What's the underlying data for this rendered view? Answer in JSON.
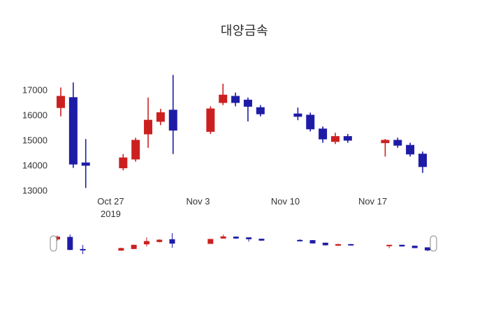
{
  "chart_data": {
    "type": "candlestick",
    "title": "대양금속",
    "increasing_color": "#cc2020",
    "decreasing_color": "#1e1ca6",
    "ylim": [
      12900,
      17800
    ],
    "yticks": [
      13000,
      14000,
      15000,
      16000,
      17000
    ],
    "xticks": [
      {
        "label": "Oct 27",
        "year": "2019",
        "date": "2019-10-27"
      },
      {
        "label": "Nov 3",
        "date": "2019-11-03"
      },
      {
        "label": "Nov 10",
        "date": "2019-11-10"
      },
      {
        "label": "Nov 17",
        "date": "2019-11-17"
      }
    ],
    "candles": [
      {
        "date": "2019-10-23",
        "open": 16300,
        "high": 17100,
        "low": 15950,
        "close": 16750
      },
      {
        "date": "2019-10-24",
        "open": 16700,
        "high": 17300,
        "low": 13900,
        "close": 14050
      },
      {
        "date": "2019-10-25",
        "open": 14100,
        "high": 15050,
        "low": 13100,
        "close": 14000
      },
      {
        "date": "2019-10-28",
        "open": 13900,
        "high": 14450,
        "low": 13800,
        "close": 14300
      },
      {
        "date": "2019-10-29",
        "open": 14250,
        "high": 15100,
        "low": 14150,
        "close": 15000
      },
      {
        "date": "2019-10-30",
        "open": 15250,
        "high": 16700,
        "low": 14700,
        "close": 15800
      },
      {
        "date": "2019-10-31",
        "open": 15750,
        "high": 16250,
        "low": 15600,
        "close": 16100
      },
      {
        "date": "2019-11-01",
        "open": 16200,
        "high": 17600,
        "low": 14450,
        "close": 15400
      },
      {
        "date": "2019-11-04",
        "open": 15350,
        "high": 16350,
        "low": 15250,
        "close": 16250
      },
      {
        "date": "2019-11-05",
        "open": 16500,
        "high": 17250,
        "low": 16400,
        "close": 16800
      },
      {
        "date": "2019-11-06",
        "open": 16750,
        "high": 16900,
        "low": 16350,
        "close": 16500
      },
      {
        "date": "2019-11-07",
        "open": 16600,
        "high": 16700,
        "low": 15750,
        "close": 16350
      },
      {
        "date": "2019-11-08",
        "open": 16300,
        "high": 16400,
        "low": 15950,
        "close": 16050
      },
      {
        "date": "2019-11-11",
        "open": 16050,
        "high": 16300,
        "low": 15800,
        "close": 15950
      },
      {
        "date": "2019-11-12",
        "open": 16000,
        "high": 16100,
        "low": 15350,
        "close": 15450
      },
      {
        "date": "2019-11-13",
        "open": 15450,
        "high": 15550,
        "low": 14900,
        "close": 15050
      },
      {
        "date": "2019-11-14",
        "open": 14950,
        "high": 15300,
        "low": 14850,
        "close": 15150
      },
      {
        "date": "2019-11-15",
        "open": 15150,
        "high": 15250,
        "low": 14900,
        "close": 15000
      },
      {
        "date": "2019-11-18",
        "open": 14900,
        "high": 15050,
        "low": 14350,
        "close": 15000
      },
      {
        "date": "2019-11-19",
        "open": 15000,
        "high": 15100,
        "low": 14700,
        "close": 14800
      },
      {
        "date": "2019-11-20",
        "open": 14800,
        "high": 14900,
        "low": 14350,
        "close": 14450
      },
      {
        "date": "2019-11-21",
        "open": 14450,
        "high": 14550,
        "low": 13700,
        "close": 13950
      }
    ],
    "rangeslider": true
  }
}
